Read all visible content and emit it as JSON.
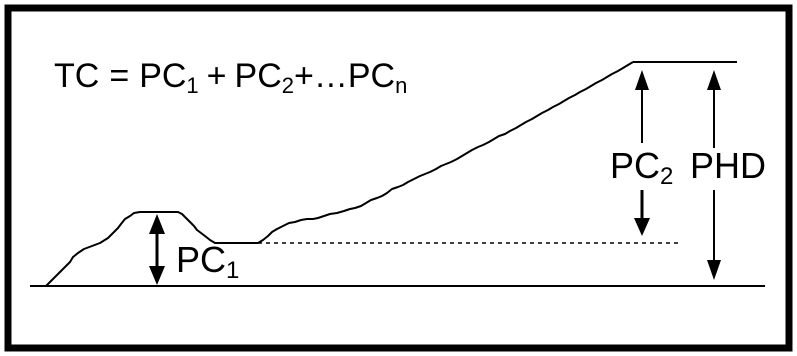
{
  "formula": {
    "lhs": "TC",
    "equals": "=",
    "term1_base": "PC",
    "term1_sub": "1",
    "plus1": "+",
    "term2_base": "PC",
    "term2_sub": "2",
    "plus2": "+…",
    "termn_base": "PC",
    "termn_sub": "n"
  },
  "labels": {
    "pc1_base": "PC",
    "pc1_sub": "1",
    "pc2_base": "PC",
    "pc2_sub": "2",
    "phd": "PHD"
  },
  "colors": {
    "ink": "#000000",
    "background": "#ffffff"
  }
}
